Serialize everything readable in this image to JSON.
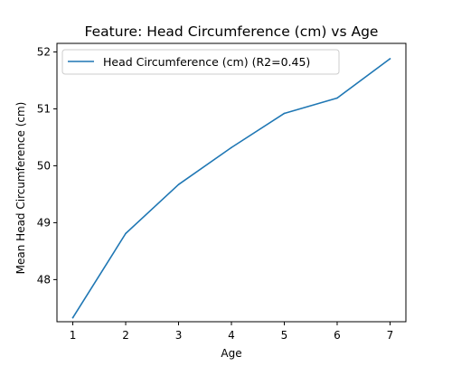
{
  "chart_data": {
    "type": "line",
    "title": "Feature: Head Circumference (cm) vs Age",
    "xlabel": "Age",
    "ylabel": "Mean Head Circumference (cm)",
    "x": [
      1,
      2,
      3,
      4,
      5,
      6,
      7
    ],
    "series": [
      {
        "name": "Head Circumference (cm) (R2=0.45)",
        "values": [
          47.33,
          48.81,
          49.67,
          50.32,
          50.92,
          51.19,
          51.88
        ],
        "color": "#1f77b4"
      }
    ],
    "xlim": [
      0.7,
      7.3
    ],
    "ylim": [
      47.26,
      52.15
    ],
    "xticks": [
      1,
      2,
      3,
      4,
      5,
      6,
      7
    ],
    "yticks": [
      48,
      49,
      50,
      51,
      52
    ],
    "legend_position": "upper-left",
    "grid": false
  }
}
